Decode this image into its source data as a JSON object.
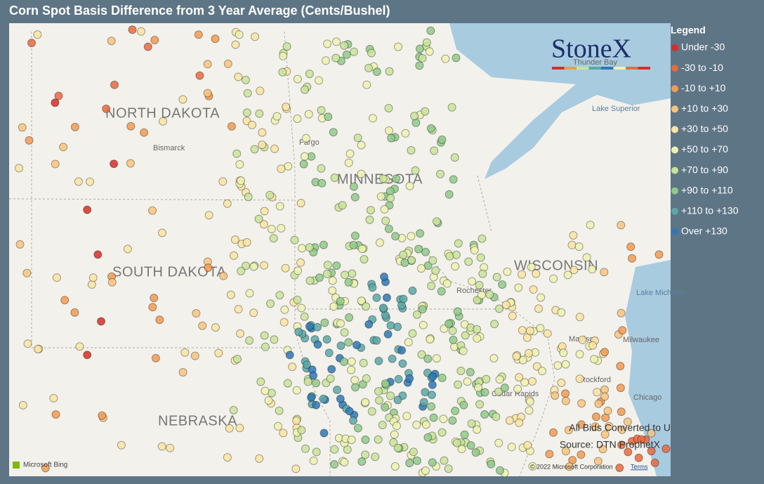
{
  "header": {
    "title": "Corn Spot Basis Difference from 3 Year Average (Cents/Bushel)"
  },
  "logo": "StoneX",
  "legend": {
    "title": "Legend",
    "items": [
      {
        "label": "Under -30",
        "color": "#d62f27"
      },
      {
        "label": "-30 to -10",
        "color": "#ea6a3e"
      },
      {
        "label": "-10 to +10",
        "color": "#f39a50"
      },
      {
        "label": "+10 to +30",
        "color": "#f8c47c"
      },
      {
        "label": "+30 to +50",
        "color": "#fbe4a2"
      },
      {
        "label": "+50 to +70",
        "color": "#eef3b0"
      },
      {
        "label": "+70 to +90",
        "color": "#c8e49a"
      },
      {
        "label": "+90 to +110",
        "color": "#8fca8a"
      },
      {
        "label": "+110 to +130",
        "color": "#5aa8a8"
      },
      {
        "label": "Over +130",
        "color": "#2e78b6"
      }
    ]
  },
  "map_labels": {
    "north_dakota": "NORTH DAKOTA",
    "south_dakota": "SOUTH DAKOTA",
    "minnesota": "MINNESOTA",
    "wisconsin": "WISCONSIN",
    "nebraska": "NEBRASKA",
    "bismarck": "Bismarck",
    "fargo": "Fargo",
    "lake_superior": "Lake Superior",
    "lake_michigan": "Lake Michigan",
    "milwaukee": "Milwaukee",
    "chicago": "Chicago",
    "rockford": "Rockford",
    "thunder_bay": "Thunder Bay",
    "rochester": "Rochester",
    "cedar_rapids": "Cedar Rapids",
    "madison": "Madison"
  },
  "notes": {
    "converted": "All Bids Converted to U",
    "source": "Source: DTN ProphetX",
    "bing": "Microsoft Bing",
    "copyright": "© 2022 Microsoft Corporation",
    "terms": "Terms"
  }
}
